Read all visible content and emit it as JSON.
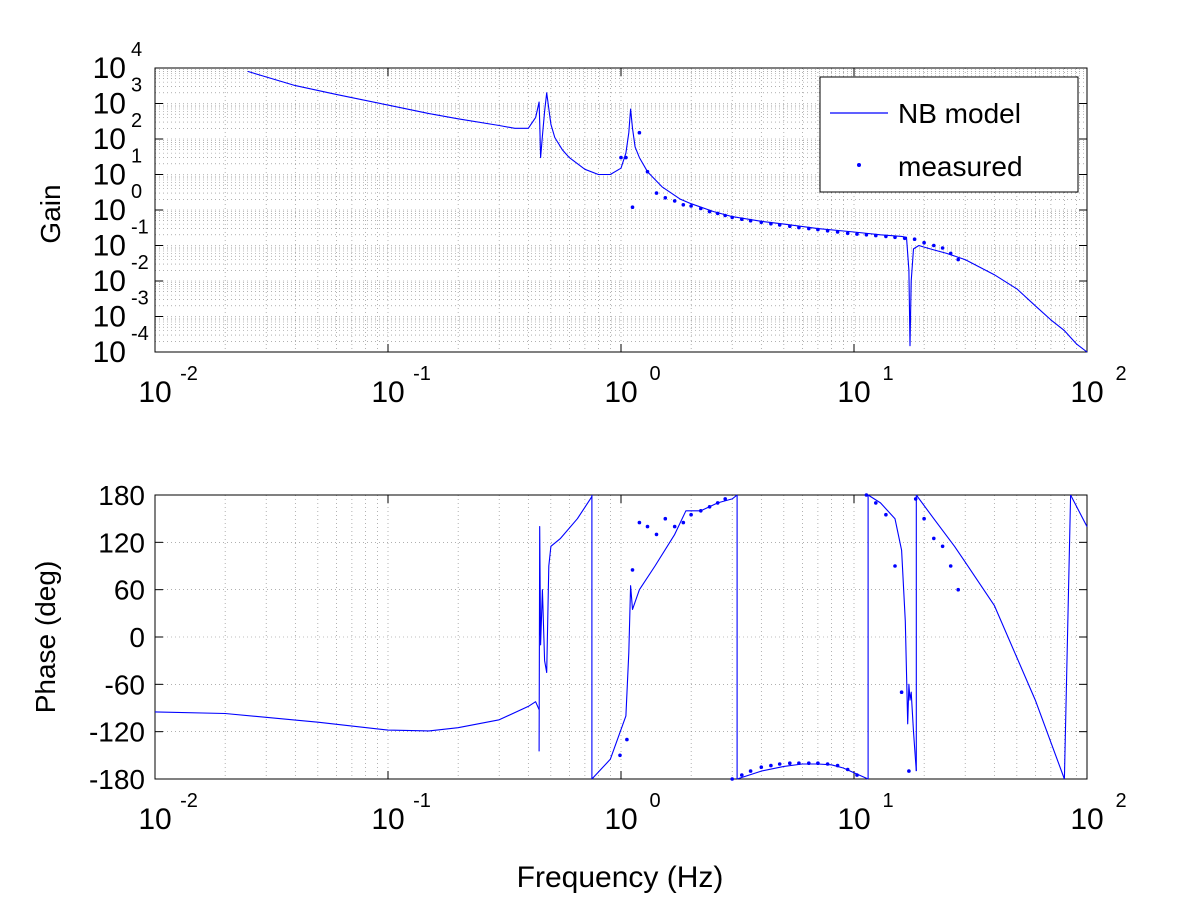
{
  "colors": {
    "series": "#0000ff",
    "axis": "#000000",
    "grid": "#808080",
    "background": "#ffffff"
  },
  "chart_data": [
    {
      "type": "line",
      "xscale": "log",
      "yscale": "log",
      "xlim": [
        0.01,
        100
      ],
      "ylim": [
        0.0001,
        10000
      ],
      "xlabel": "",
      "ylabel": "Gain",
      "grid": "on",
      "legend": {
        "placement": "top-right",
        "entries": [
          "NB model",
          "measured"
        ]
      },
      "x_ticks": [
        {
          "value": 0.01,
          "base": "10",
          "exp": "-2"
        },
        {
          "value": 0.1,
          "base": "10",
          "exp": "-1"
        },
        {
          "value": 1,
          "base": "10",
          "exp": "0"
        },
        {
          "value": 10,
          "base": "10",
          "exp": "1"
        },
        {
          "value": 100,
          "base": "10",
          "exp": "2"
        }
      ],
      "y_ticks": [
        {
          "value": 0.0001,
          "base": "10",
          "exp": "-4"
        },
        {
          "value": 0.001,
          "base": "10",
          "exp": "-3"
        },
        {
          "value": 0.01,
          "base": "10",
          "exp": "-2"
        },
        {
          "value": 0.1,
          "base": "10",
          "exp": "-1"
        },
        {
          "value": 1,
          "base": "10",
          "exp": "0"
        },
        {
          "value": 10,
          "base": "10",
          "exp": "1"
        },
        {
          "value": 100,
          "base": "10",
          "exp": "2"
        },
        {
          "value": 1000,
          "base": "10",
          "exp": "3"
        },
        {
          "value": 10000,
          "base": "10",
          "exp": "4"
        }
      ],
      "series": [
        {
          "name": "NB model",
          "style": "line",
          "x": [
            0.025,
            0.04,
            0.06,
            0.1,
            0.15,
            0.2,
            0.3,
            0.35,
            0.4,
            0.43,
            0.445,
            0.448,
            0.452,
            0.46,
            0.47,
            0.48,
            0.5,
            0.52,
            0.56,
            0.6,
            0.7,
            0.8,
            0.9,
            1.0,
            1.05,
            1.08,
            1.1,
            1.12,
            1.15,
            1.2,
            1.3,
            1.5,
            1.8,
            2.0,
            2.5,
            3,
            4,
            5,
            7,
            10,
            13,
            16,
            16.8,
            17.2,
            17.4,
            17.6,
            18,
            19,
            20,
            22,
            25,
            30,
            40,
            50,
            60,
            70,
            80,
            90,
            100
          ],
          "y": [
            8000,
            3200,
            1800,
            900,
            520,
            370,
            240,
            200,
            200,
            400,
            1100,
            300,
            30,
            120,
            600,
            2000,
            260,
            110,
            50,
            30,
            14,
            10,
            10,
            15,
            40,
            150,
            700,
            200,
            60,
            30,
            12,
            4.5,
            2,
            1.5,
            0.9,
            0.65,
            0.48,
            0.4,
            0.3,
            0.24,
            0.2,
            0.18,
            0.17,
            0.02,
            0.00015,
            0.01,
            0.08,
            0.1,
            0.09,
            0.075,
            0.06,
            0.04,
            0.015,
            0.006,
            0.002,
            0.0008,
            0.0004,
            0.00017,
            8e-05
          ]
        },
        {
          "name": "measured",
          "style": "dot",
          "x": [
            1.0,
            1.05,
            1.12,
            1.2,
            1.3,
            1.42,
            1.55,
            1.7,
            1.85,
            2.0,
            2.2,
            2.4,
            2.6,
            2.8,
            3.0,
            3.3,
            3.6,
            4.0,
            4.4,
            4.8,
            5.3,
            5.8,
            6.4,
            7.0,
            7.7,
            8.5,
            9.4,
            10.3,
            11.3,
            12.4,
            13.7,
            15.0,
            16.5,
            18.2,
            20.0,
            22.0,
            24.0,
            26.0,
            28.0
          ],
          "y": [
            30,
            30,
            1.2,
            150,
            12,
            3,
            2.2,
            1.8,
            1.4,
            1.3,
            1.1,
            0.9,
            0.8,
            0.7,
            0.62,
            0.55,
            0.5,
            0.45,
            0.41,
            0.38,
            0.35,
            0.32,
            0.3,
            0.28,
            0.26,
            0.24,
            0.22,
            0.21,
            0.2,
            0.19,
            0.18,
            0.17,
            0.16,
            0.15,
            0.12,
            0.1,
            0.085,
            0.06,
            0.04
          ]
        }
      ]
    },
    {
      "type": "line",
      "xscale": "log",
      "yscale": "linear",
      "xlim": [
        0.01,
        100
      ],
      "ylim": [
        -180,
        180
      ],
      "xlabel": "Frequency (Hz)",
      "ylabel": "Phase (deg)",
      "grid": "on",
      "x_ticks": [
        {
          "value": 0.01,
          "base": "10",
          "exp": "-2"
        },
        {
          "value": 0.1,
          "base": "10",
          "exp": "-1"
        },
        {
          "value": 1,
          "base": "10",
          "exp": "0"
        },
        {
          "value": 10,
          "base": "10",
          "exp": "1"
        },
        {
          "value": 100,
          "base": "10",
          "exp": "2"
        }
      ],
      "y_ticks": [
        {
          "value": -180,
          "label": "-180"
        },
        {
          "value": -120,
          "label": "-120"
        },
        {
          "value": -60,
          "label": "-60"
        },
        {
          "value": 0,
          "label": "0"
        },
        {
          "value": 60,
          "label": "60"
        },
        {
          "value": 120,
          "label": "120"
        },
        {
          "value": 180,
          "label": "180"
        }
      ],
      "series": [
        {
          "name": "NB model",
          "style": "line",
          "segments": [
            {
              "x": [
                0.01,
                0.02,
                0.05,
                0.1,
                0.15,
                0.2,
                0.3,
                0.4,
                0.43,
                0.445
              ],
              "y": [
                -95,
                -97,
                -108,
                -118,
                -119,
                -115,
                -105,
                -88,
                -82,
                -92
              ]
            },
            {
              "x": [
                0.445,
                0.448,
                0.452,
                0.46,
                0.47,
                0.48,
                0.49,
                0.5,
                0.55,
                0.65,
                0.75
              ],
              "y": [
                -145,
                140,
                -10,
                60,
                -30,
                -45,
                90,
                115,
                125,
                150,
                178
              ]
            },
            {
              "x": [
                0.75,
                0.75
              ],
              "y": [
                180,
                -180
              ]
            },
            {
              "x": [
                0.75,
                0.9,
                1.05,
                1.08,
                1.1,
                1.12,
                1.2,
                1.4,
                1.7,
                1.9,
                2.2,
                2.6,
                3.0,
                3.15
              ],
              "y": [
                -180,
                -155,
                -100,
                -20,
                65,
                35,
                60,
                90,
                130,
                160,
                160,
                170,
                175,
                180
              ]
            },
            {
              "x": [
                3.15,
                3.15
              ],
              "y": [
                180,
                -180
              ]
            },
            {
              "x": [
                3.15,
                4,
                5,
                6,
                7,
                8,
                9,
                10,
                11.5
              ],
              "y": [
                -180,
                -170,
                -164,
                -161,
                -161,
                -162,
                -166,
                -172,
                -180
              ]
            },
            {
              "x": [
                11.5,
                11.5
              ],
              "y": [
                -180,
                180
              ]
            },
            {
              "x": [
                11.5,
                13,
                15,
                16,
                16.6,
                17.0,
                17.2,
                17.4,
                17.6,
                18,
                18.5
              ],
              "y": [
                180,
                170,
                150,
                110,
                20,
                -110,
                -60,
                -80,
                -70,
                -120,
                -170
              ]
            },
            {
              "x": [
                18.5,
                18.5
              ],
              "y": [
                -170,
                180
              ]
            },
            {
              "x": [
                18.5,
                22,
                27,
                30,
                40,
                60,
                80
              ],
              "y": [
                180,
                150,
                115,
                95,
                40,
                -80,
                -180
              ]
            },
            {
              "x": [
                80,
                85
              ],
              "y": [
                -180,
                180
              ]
            },
            {
              "x": [
                85,
                100
              ],
              "y": [
                180,
                140
              ]
            }
          ]
        },
        {
          "name": "measured",
          "style": "dot",
          "x": [
            0.99,
            1.06,
            1.12,
            1.2,
            1.3,
            1.42,
            1.55,
            1.7,
            1.85,
            2.0,
            2.2,
            2.4,
            2.6,
            2.8,
            3.0,
            3.3,
            3.6,
            4.0,
            4.4,
            4.8,
            5.3,
            5.8,
            6.4,
            7.0,
            7.7,
            8.5,
            9.4,
            10.3,
            11.3,
            12.4,
            13.7,
            15.0,
            16.0,
            17.2,
            18.4,
            20.0,
            22.0,
            24.0,
            26.0,
            28.0
          ],
          "y": [
            -150,
            -130,
            85,
            145,
            140,
            130,
            150,
            140,
            145,
            155,
            160,
            165,
            170,
            175,
            -180,
            -175,
            -170,
            -165,
            -163,
            -161,
            -160,
            -160,
            -160,
            -160,
            -161,
            -163,
            -168,
            -175,
            180,
            170,
            155,
            90,
            -70,
            -170,
            175,
            150,
            125,
            115,
            90,
            60
          ]
        }
      ]
    }
  ]
}
